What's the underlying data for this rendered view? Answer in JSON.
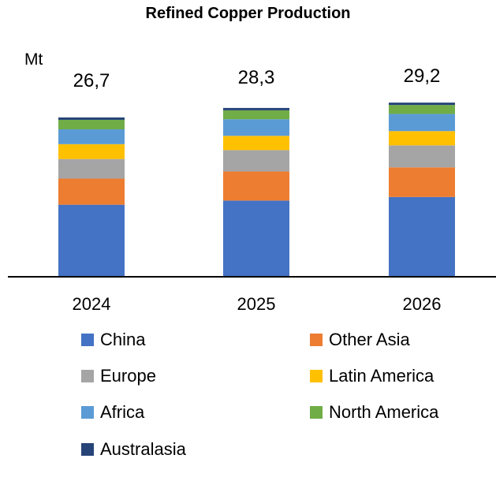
{
  "chart_data": {
    "type": "bar",
    "stacked": true,
    "title": "Refined Copper Production",
    "ylabel": "Mt",
    "xlabel": "",
    "categories": [
      "2024",
      "2025",
      "2026"
    ],
    "totals": [
      "26,7",
      "28,3",
      "29,2"
    ],
    "ylim": [
      0,
      30
    ],
    "grid": false,
    "legend_position": "bottom",
    "series": [
      {
        "name": "China",
        "color": "#4472C4",
        "values": [
          12.0,
          12.7,
          13.3
        ]
      },
      {
        "name": "Other Asia",
        "color": "#ED7D31",
        "values": [
          4.4,
          4.9,
          5.0
        ]
      },
      {
        "name": "Europe",
        "color": "#A5A5A5",
        "values": [
          3.3,
          3.6,
          3.7
        ]
      },
      {
        "name": "Latin America",
        "color": "#FFC000",
        "values": [
          2.5,
          2.4,
          2.4
        ]
      },
      {
        "name": "Africa",
        "color": "#5B9BD5",
        "values": [
          2.5,
          2.8,
          2.9
        ]
      },
      {
        "name": "North America",
        "color": "#70AD47",
        "values": [
          1.6,
          1.5,
          1.5
        ]
      },
      {
        "name": "Australasia",
        "color": "#264478",
        "values": [
          0.4,
          0.4,
          0.4
        ]
      }
    ]
  }
}
